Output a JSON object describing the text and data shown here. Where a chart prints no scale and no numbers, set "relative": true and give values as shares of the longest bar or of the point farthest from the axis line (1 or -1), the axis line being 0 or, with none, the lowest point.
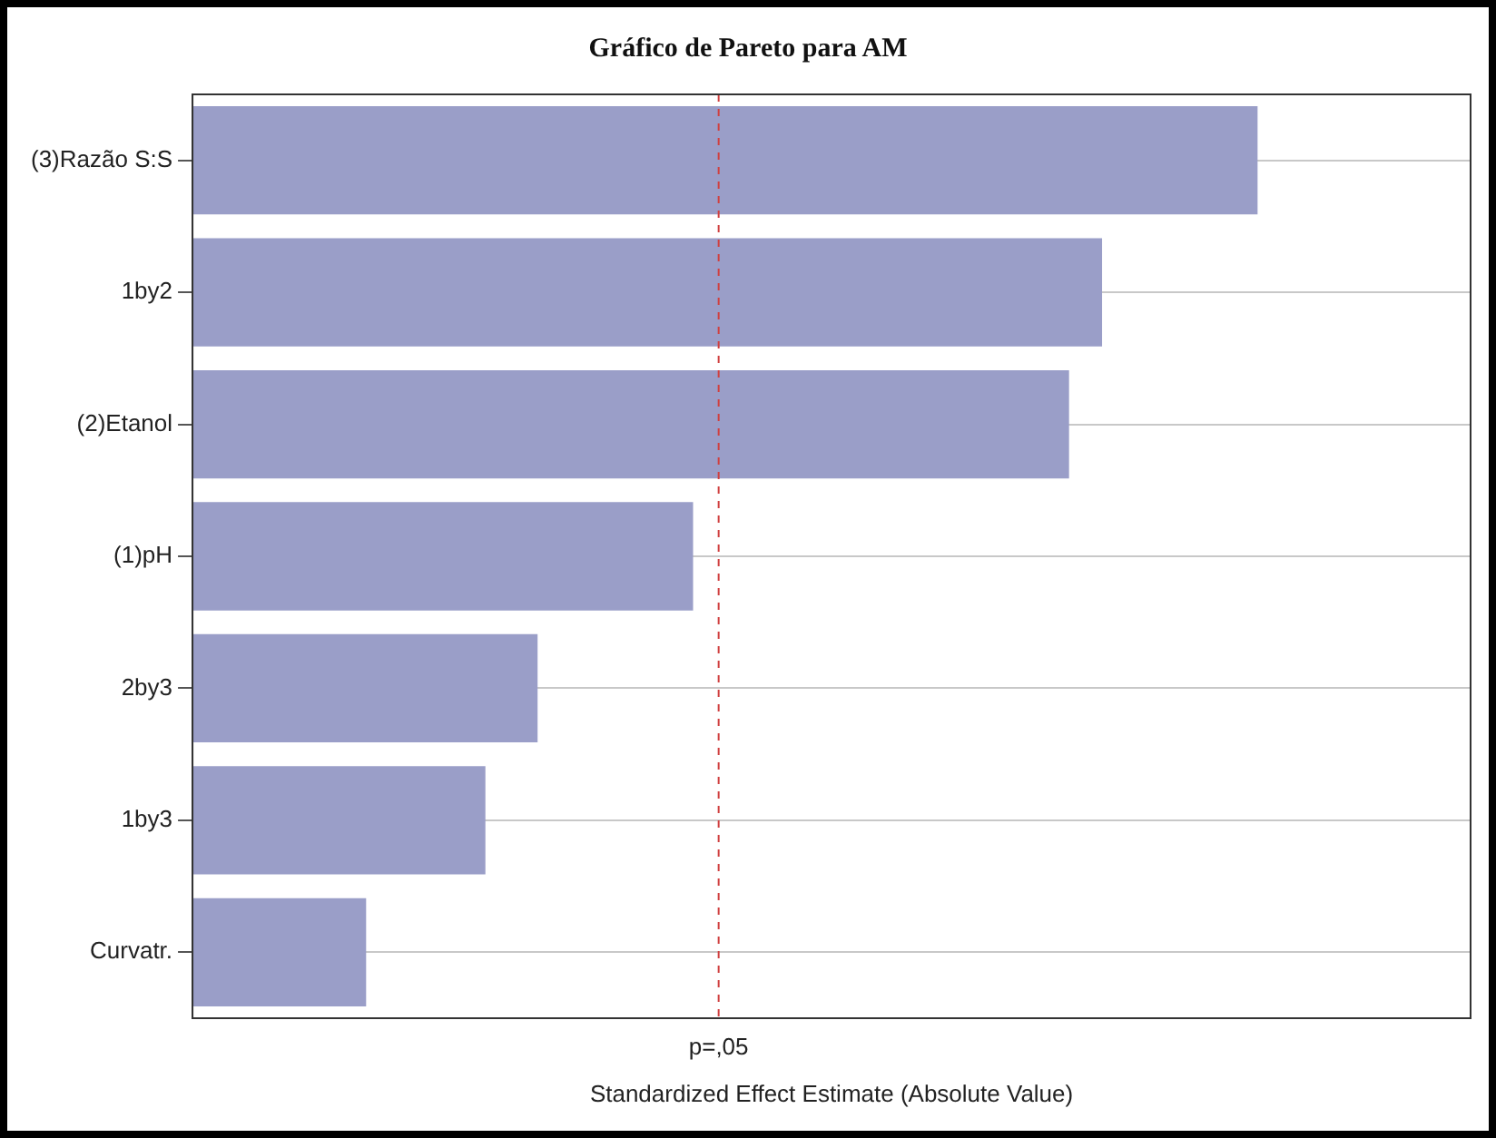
{
  "chart_data": {
    "type": "bar",
    "orientation": "horizontal",
    "relative": true,
    "title": "Gráfico de Pareto para AM",
    "xlabel": "Standardized Effect Estimate (Absolute Value)",
    "categories": [
      "(3)Razão S:S",
      "1by2",
      "(2)Etanol",
      "(1)pH",
      "2by3",
      "1by3",
      "Curvatr."
    ],
    "values": [
      1,
      0.854,
      0.823,
      0.47,
      0.324,
      0.275,
      0.163
    ],
    "color": "#9a9ec8",
    "ref_lines": [
      {
        "axis": "x",
        "value": 0.494,
        "label": "p=,05",
        "color": "#d04040",
        "line_style": "dashed"
      }
    ],
    "grid": "y",
    "legend": false
  }
}
